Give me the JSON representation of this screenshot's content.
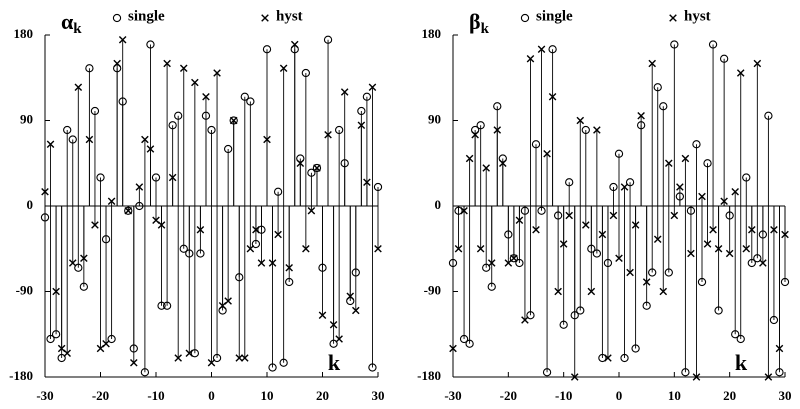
{
  "chart_data": [
    {
      "type": "stem",
      "symbol": "α",
      "subscript": "k",
      "xlabel": "k",
      "x": [
        -30,
        -29,
        -28,
        -27,
        -26,
        -25,
        -24,
        -23,
        -22,
        -21,
        -20,
        -19,
        -18,
        -17,
        -16,
        -15,
        -14,
        -13,
        -12,
        -11,
        -10,
        -9,
        -8,
        -7,
        -6,
        -5,
        -4,
        -3,
        -2,
        -1,
        0,
        1,
        2,
        3,
        4,
        5,
        6,
        7,
        8,
        9,
        10,
        11,
        12,
        13,
        14,
        15,
        16,
        17,
        18,
        19,
        20,
        21,
        22,
        23,
        24,
        25,
        26,
        27,
        28,
        29,
        30
      ],
      "xlim": [
        -30,
        30
      ],
      "xticks": [
        -30,
        -20,
        -10,
        0,
        10,
        20,
        30
      ],
      "ylim": [
        -180,
        180
      ],
      "yticks": [
        -180,
        -90,
        0,
        90,
        180
      ],
      "series": [
        {
          "name": "single",
          "marker": "circle",
          "color": "#000000",
          "values": [
            -12,
            -140,
            -135,
            -160,
            80,
            70,
            -65,
            -85,
            145,
            100,
            30,
            -35,
            -140,
            145,
            110,
            -5,
            -150,
            0,
            -175,
            170,
            30,
            -105,
            -105,
            85,
            95,
            -45,
            -50,
            -155,
            -50,
            95,
            80,
            -160,
            -110,
            60,
            90,
            -75,
            115,
            110,
            -40,
            -25,
            165,
            -170,
            15,
            -165,
            -80,
            165,
            50,
            140,
            35,
            40,
            -65,
            175,
            -145,
            80,
            45,
            -100,
            -70,
            100,
            115,
            -170,
            20
          ]
        },
        {
          "name": "hyst",
          "marker": "cross",
          "color": "#000000",
          "values": [
            15,
            65,
            -90,
            -150,
            -155,
            -60,
            125,
            -55,
            70,
            -20,
            -150,
            -145,
            5,
            150,
            175,
            -5,
            -165,
            20,
            70,
            60,
            -15,
            -20,
            150,
            30,
            -160,
            145,
            -155,
            130,
            -25,
            115,
            -165,
            140,
            -105,
            -100,
            90,
            -160,
            -160,
            -45,
            -25,
            -60,
            70,
            -60,
            -30,
            145,
            -65,
            170,
            45,
            -45,
            -5,
            40,
            -115,
            75,
            -125,
            -140,
            120,
            -95,
            -110,
            85,
            25,
            125,
            -45
          ]
        }
      ]
    },
    {
      "type": "stem",
      "symbol": "β",
      "subscript": "k",
      "xlabel": "k",
      "x": [
        -30,
        -29,
        -28,
        -27,
        -26,
        -25,
        -24,
        -23,
        -22,
        -21,
        -20,
        -19,
        -18,
        -17,
        -16,
        -15,
        -14,
        -13,
        -12,
        -11,
        -10,
        -9,
        -8,
        -7,
        -6,
        -5,
        -4,
        -3,
        -2,
        -1,
        0,
        1,
        2,
        3,
        4,
        5,
        6,
        7,
        8,
        9,
        10,
        11,
        12,
        13,
        14,
        15,
        16,
        17,
        18,
        19,
        20,
        21,
        22,
        23,
        24,
        25,
        26,
        27,
        28,
        29,
        30
      ],
      "xlim": [
        -30,
        30
      ],
      "xticks": [
        -30,
        -20,
        -10,
        0,
        10,
        20,
        30
      ],
      "ylim": [
        -180,
        180
      ],
      "yticks": [
        -180,
        -90,
        0,
        90,
        180
      ],
      "series": [
        {
          "name": "single",
          "marker": "circle",
          "color": "#000000",
          "values": [
            -60,
            -5,
            -140,
            -145,
            80,
            85,
            -65,
            -85,
            105,
            50,
            -30,
            -55,
            -60,
            -5,
            -115,
            65,
            -5,
            -175,
            165,
            -10,
            -125,
            25,
            -115,
            -110,
            80,
            -45,
            -50,
            -160,
            -60,
            20,
            55,
            -160,
            25,
            -150,
            85,
            -105,
            -70,
            125,
            105,
            -70,
            170,
            10,
            -175,
            -5,
            65,
            -80,
            45,
            170,
            -110,
            155,
            -10,
            -135,
            -140,
            30,
            -60,
            -55,
            -30,
            95,
            -120,
            -175,
            -80
          ]
        },
        {
          "name": "hyst",
          "marker": "cross",
          "color": "#000000",
          "values": [
            -150,
            -45,
            -5,
            50,
            75,
            -45,
            40,
            -60,
            80,
            45,
            -60,
            -55,
            -15,
            -120,
            155,
            -25,
            165,
            55,
            115,
            -90,
            -40,
            -10,
            -180,
            90,
            -20,
            -90,
            80,
            -30,
            -160,
            -10,
            -55,
            20,
            -70,
            -20,
            95,
            -80,
            150,
            -35,
            -90,
            45,
            -10,
            20,
            50,
            -50,
            -180,
            10,
            -40,
            -25,
            -45,
            5,
            -50,
            15,
            140,
            -45,
            -25,
            150,
            -60,
            -180,
            -25,
            -150,
            -30
          ]
        }
      ]
    }
  ]
}
